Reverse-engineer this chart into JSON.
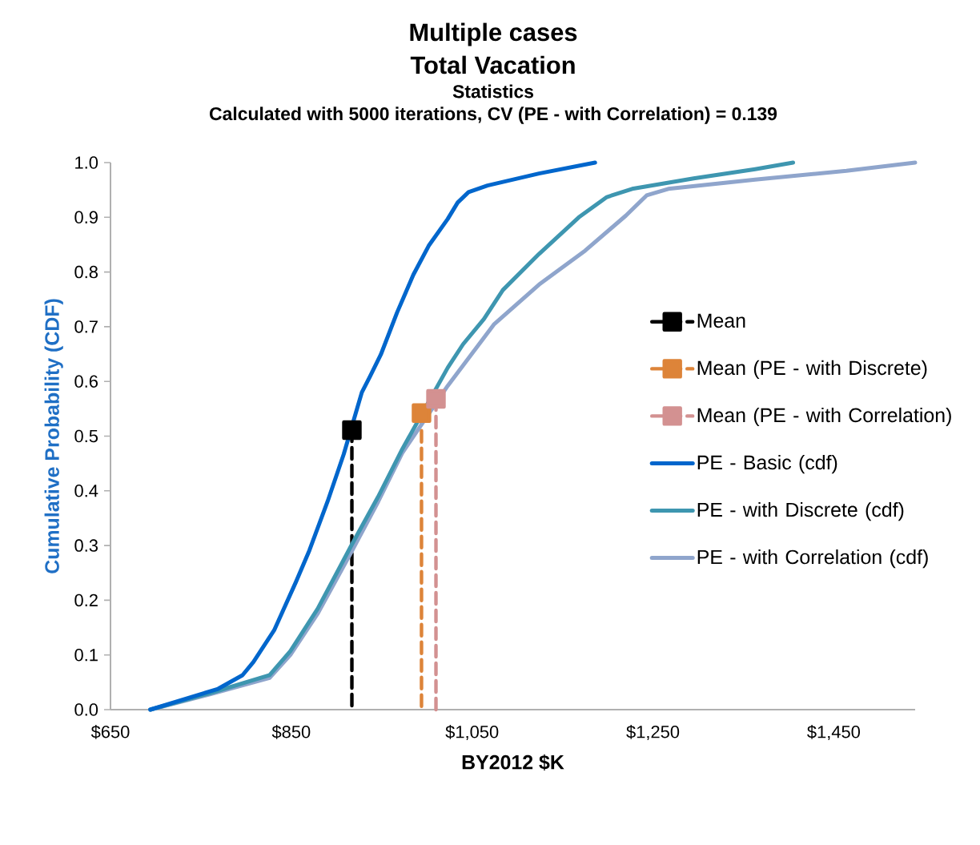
{
  "chart_data": {
    "type": "line",
    "title": "Multiple cases",
    "subtitle": "Total Vacation",
    "annotations": [
      "Statistics",
      "Calculated with 5000 iterations, CV (PE - with Correlation) = 0.139"
    ],
    "xlabel": "BY2012 $K",
    "ylabel": "Cumulative Probability (CDF)",
    "xlim": [
      650,
      1540
    ],
    "ylim": [
      0,
      1
    ],
    "xticks": [
      {
        "value": 650,
        "label": "$650"
      },
      {
        "value": 850,
        "label": "$850"
      },
      {
        "value": 1050,
        "label": "$1,050"
      },
      {
        "value": 1250,
        "label": "$1,250"
      },
      {
        "value": 1450,
        "label": "$1,450"
      }
    ],
    "yticks": [
      {
        "value": 0,
        "label": "0.0"
      },
      {
        "value": 0.1,
        "label": "0.1"
      },
      {
        "value": 0.2,
        "label": "0.2"
      },
      {
        "value": 0.3,
        "label": "0.3"
      },
      {
        "value": 0.4,
        "label": "0.4"
      },
      {
        "value": 0.5,
        "label": "0.5"
      },
      {
        "value": 0.6,
        "label": "0.6"
      },
      {
        "value": 0.7,
        "label": "0.7"
      },
      {
        "value": 0.8,
        "label": "0.8"
      },
      {
        "value": 0.9,
        "label": "0.9"
      },
      {
        "value": 1,
        "label": "1.0"
      }
    ],
    "grid": false,
    "legend": "right",
    "marker": "none",
    "line_style": "solid",
    "series": [
      {
        "name": "Mean",
        "color": "#000000",
        "x": [
          917,
          917
        ],
        "values": [
          0.511,
          0
        ],
        "marker": "square",
        "line_style": "dashed"
      },
      {
        "name": "Mean (PE - with Discrete)",
        "color": "#dd8439",
        "x": [
          994,
          994
        ],
        "values": [
          0.542,
          0
        ],
        "marker": "square",
        "line_style": "dashed"
      },
      {
        "name": "Mean (PE - with Correlation)",
        "color": "#d39191",
        "x": [
          1010,
          1010
        ],
        "values": [
          0.568,
          0
        ],
        "marker": "square",
        "line_style": "dashed"
      },
      {
        "name": "PE - Basic (cdf)",
        "color": "#0066cc",
        "x": [
          694,
          769,
          796,
          808,
          831,
          855,
          870,
          890,
          908,
          928,
          937,
          949,
          967,
          985,
          1002,
          1023,
          1034,
          1046,
          1067,
          1124,
          1186
        ],
        "values": [
          0,
          0.038,
          0.063,
          0.087,
          0.145,
          0.233,
          0.291,
          0.38,
          0.467,
          0.58,
          0.609,
          0.649,
          0.726,
          0.795,
          0.848,
          0.897,
          0.927,
          0.946,
          0.958,
          0.98,
          1.0
        ]
      },
      {
        "name": "PE - with Discrete (cdf)",
        "color": "#3e96b0",
        "x": [
          694,
          760,
          826,
          849,
          879,
          917,
          946,
          973,
          1023,
          1040,
          1063,
          1084,
          1124,
          1168,
          1199,
          1227,
          1295,
          1363,
          1405
        ],
        "values": [
          0,
          0.03,
          0.063,
          0.107,
          0.184,
          0.302,
          0.389,
          0.477,
          0.625,
          0.668,
          0.714,
          0.767,
          0.833,
          0.9,
          0.937,
          0.952,
          0.971,
          0.988,
          1.0
        ]
      },
      {
        "name": "PE - with Correlation (cdf)",
        "color": "#8fa5cc",
        "x": [
          694,
          760,
          826,
          849,
          879,
          917,
          946,
          973,
          1023,
          1074,
          1124,
          1175,
          1220,
          1243,
          1267,
          1363,
          1464,
          1540
        ],
        "values": [
          0,
          0.028,
          0.058,
          0.1,
          0.175,
          0.29,
          0.38,
          0.47,
          0.592,
          0.704,
          0.777,
          0.839,
          0.903,
          0.94,
          0.952,
          0.969,
          0.985,
          1.0
        ]
      }
    ]
  }
}
